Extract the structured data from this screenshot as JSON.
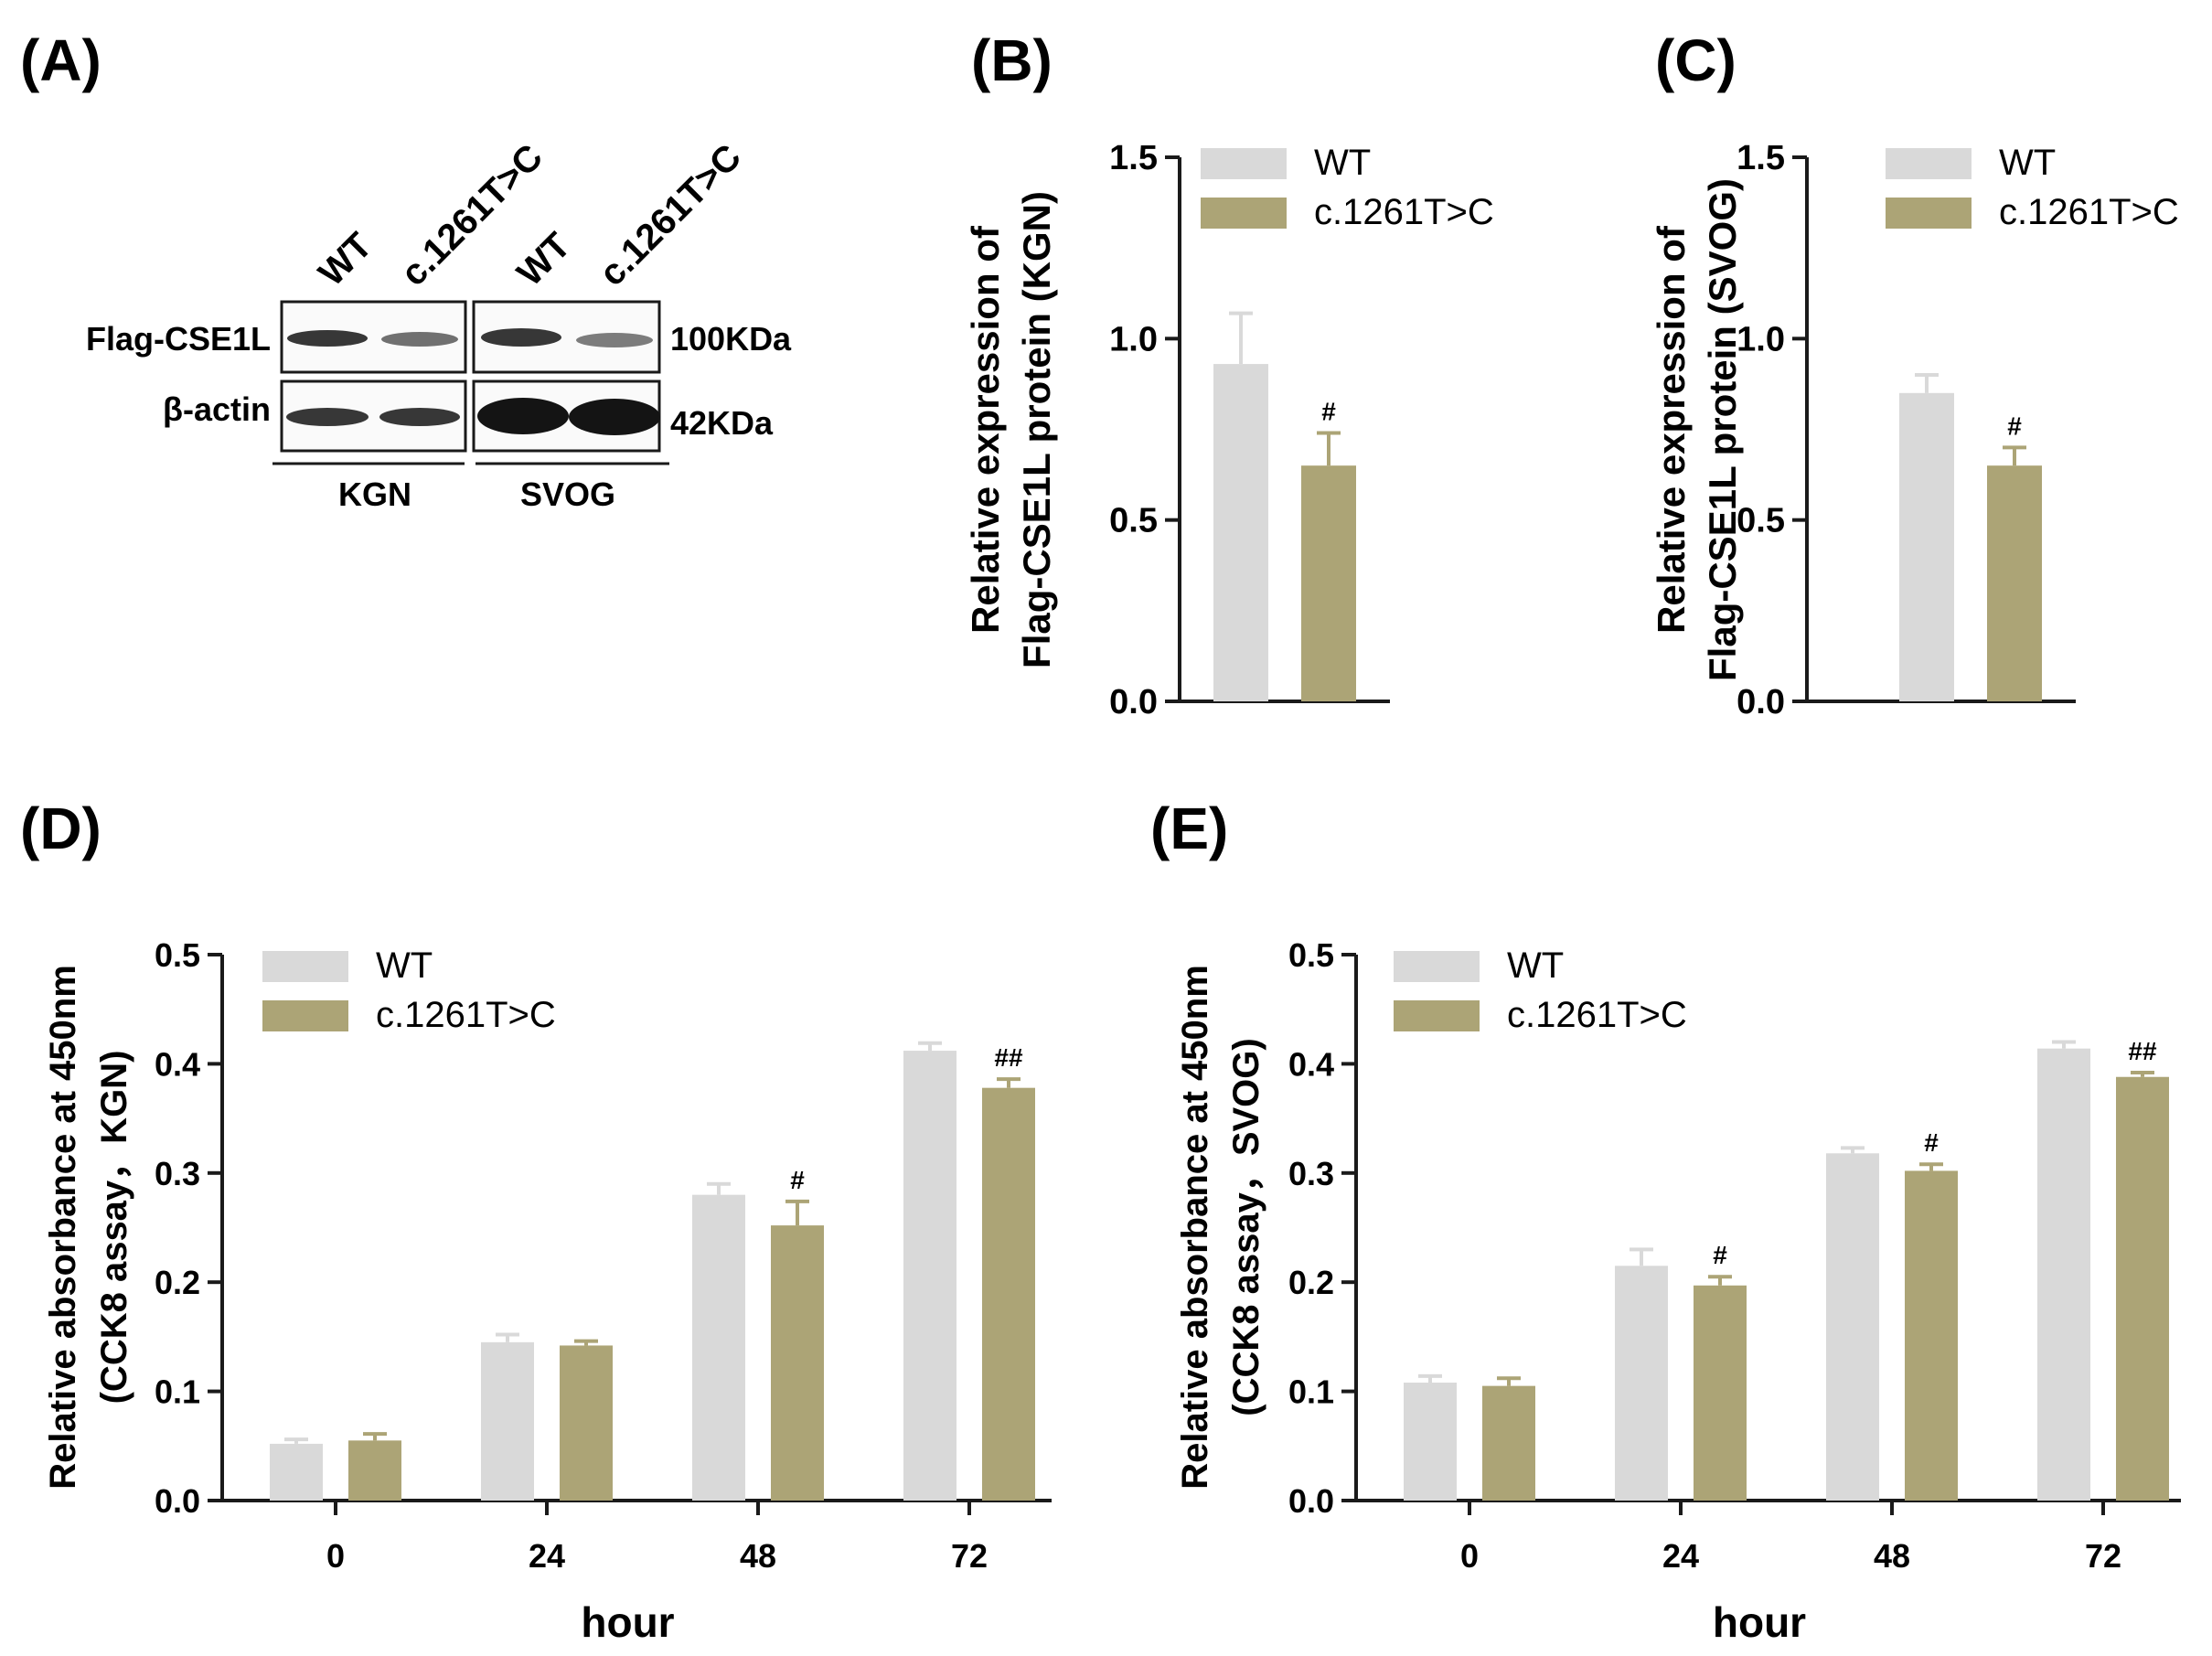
{
  "panels": {
    "A": "(A)",
    "B": "(B)",
    "C": "(C)",
    "D": "(D)",
    "E": "(E)"
  },
  "colors": {
    "wt": "#d9d9d9",
    "mut": "#aca476",
    "axis": "#1a1a1a",
    "blot": "#141414"
  },
  "blot": {
    "lanes": [
      "WT",
      "c.1261T>C",
      "WT",
      "c.1261T>C"
    ],
    "rows": [
      "Flag-CSE1L",
      "β-actin"
    ],
    "sizes": [
      "100KDa",
      "42KDa"
    ],
    "groups": [
      "KGN",
      "SVOG"
    ],
    "band_intensity": {
      "flag": [
        0.85,
        0.6,
        0.85,
        0.55
      ],
      "actin": [
        0.85,
        0.85,
        1.0,
        1.0
      ]
    }
  },
  "legend": [
    "WT",
    "c.1261T>C"
  ],
  "chart_data": [
    {
      "id": "B",
      "type": "bar",
      "ylabel_lines": [
        "Relative expression of",
        "Flag-CSE1L protein (KGN)"
      ],
      "ylim": [
        0,
        1.5
      ],
      "yticks": [
        "0.0",
        "0.5",
        "1.0",
        "1.5"
      ],
      "ytick_values": [
        0,
        0.5,
        1.0,
        1.5
      ],
      "categories": [
        ""
      ],
      "xlabel": "",
      "series": [
        {
          "name": "WT",
          "values": [
            0.93
          ],
          "errors": [
            0.14
          ]
        },
        {
          "name": "c.1261T>C",
          "values": [
            0.65
          ],
          "errors": [
            0.09
          ]
        }
      ],
      "annotations": [
        {
          "series": 1,
          "index": 0,
          "text": "#"
        }
      ]
    },
    {
      "id": "C",
      "type": "bar",
      "ylabel_lines": [
        "Relative expression of",
        "Flag-CSE1L protein (SVOG)"
      ],
      "ylim": [
        0,
        1.5
      ],
      "yticks": [
        "0.0",
        "0.5",
        "1.0",
        "1.5"
      ],
      "ytick_values": [
        0,
        0.5,
        1.0,
        1.5
      ],
      "categories": [
        ""
      ],
      "xlabel": "",
      "series": [
        {
          "name": "WT",
          "values": [
            0.85
          ],
          "errors": [
            0.05
          ]
        },
        {
          "name": "c.1261T>C",
          "values": [
            0.65
          ],
          "errors": [
            0.05
          ]
        }
      ],
      "annotations": [
        {
          "series": 1,
          "index": 0,
          "text": "#"
        }
      ]
    },
    {
      "id": "D",
      "type": "bar",
      "ylabel_lines": [
        "Relative absorbance at 450nm",
        "(CCK8 assay，KGN)"
      ],
      "ylim": [
        0,
        0.5
      ],
      "yticks": [
        "0.0",
        "0.1",
        "0.2",
        "0.3",
        "0.4",
        "0.5"
      ],
      "ytick_values": [
        0,
        0.1,
        0.2,
        0.3,
        0.4,
        0.5
      ],
      "categories": [
        "0",
        "24",
        "48",
        "72"
      ],
      "xlabel": "hour",
      "series": [
        {
          "name": "WT",
          "values": [
            0.052,
            0.145,
            0.28,
            0.412
          ],
          "errors": [
            0.004,
            0.007,
            0.01,
            0.007
          ]
        },
        {
          "name": "c.1261T>C",
          "values": [
            0.055,
            0.142,
            0.252,
            0.378
          ],
          "errors": [
            0.006,
            0.004,
            0.022,
            0.008
          ]
        }
      ],
      "annotations": [
        {
          "series": 1,
          "index": 2,
          "text": "#"
        },
        {
          "series": 1,
          "index": 3,
          "text": "##"
        }
      ]
    },
    {
      "id": "E",
      "type": "bar",
      "ylabel_lines": [
        "Relative absorbance at 450nm",
        "(CCK8 assay，SVOG)"
      ],
      "ylim": [
        0,
        0.5
      ],
      "yticks": [
        "0.0",
        "0.1",
        "0.2",
        "0.3",
        "0.4",
        "0.5"
      ],
      "ytick_values": [
        0,
        0.1,
        0.2,
        0.3,
        0.4,
        0.5
      ],
      "categories": [
        "0",
        "24",
        "48",
        "72"
      ],
      "xlabel": "hour",
      "series": [
        {
          "name": "WT",
          "values": [
            0.108,
            0.215,
            0.318,
            0.414
          ],
          "errors": [
            0.006,
            0.015,
            0.005,
            0.006
          ]
        },
        {
          "name": "c.1261T>C",
          "values": [
            0.105,
            0.197,
            0.302,
            0.388
          ],
          "errors": [
            0.007,
            0.008,
            0.006,
            0.004
          ]
        }
      ],
      "annotations": [
        {
          "series": 1,
          "index": 1,
          "text": "#"
        },
        {
          "series": 1,
          "index": 2,
          "text": "#"
        },
        {
          "series": 1,
          "index": 3,
          "text": "##"
        }
      ]
    }
  ]
}
